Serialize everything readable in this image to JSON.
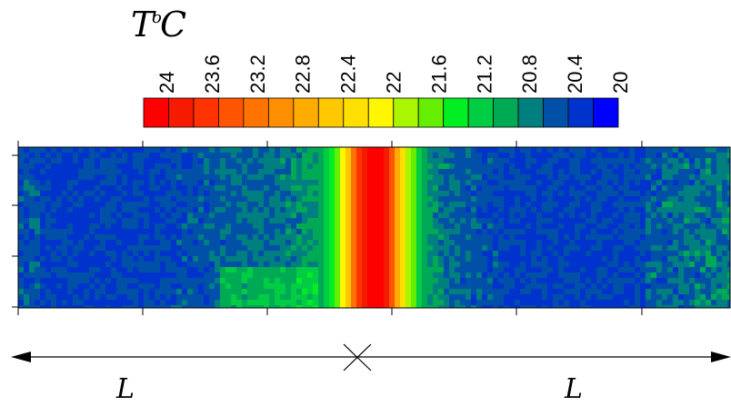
{
  "chart_data": {
    "type": "heatmap",
    "title_symbol": "T",
    "title_superscript": "o",
    "title_unit": "C",
    "colorbar": {
      "tick_labels": [
        "24",
        "23.6",
        "23.2",
        "22.8",
        "22.4",
        "22",
        "21.6",
        "21.2",
        "20.8",
        "20.4",
        "20"
      ],
      "colors": [
        "#ff0000",
        "#f51a00",
        "#ff3300",
        "#ff5500",
        "#ff7300",
        "#ff8f00",
        "#ffab00",
        "#ffc800",
        "#ffe000",
        "#fff700",
        "#aaf500",
        "#66ee00",
        "#00ee22",
        "#00cc44",
        "#00aa55",
        "#007f80",
        "#0050a8",
        "#0033cc",
        "#0000ff"
      ],
      "min": 20,
      "max": 24
    },
    "field_profile": {
      "x": [
        0.0,
        0.1,
        0.2,
        0.3,
        0.38,
        0.42,
        0.44,
        0.46,
        0.48,
        0.5,
        0.52,
        0.54,
        0.56,
        0.58,
        0.62,
        0.7,
        0.8,
        0.9,
        1.0
      ],
      "temperature": [
        20.4,
        20.4,
        20.45,
        20.6,
        20.7,
        20.9,
        21.3,
        22.2,
        23.6,
        24.0,
        23.6,
        22.2,
        21.3,
        20.8,
        20.6,
        20.4,
        20.4,
        20.45,
        20.6
      ]
    },
    "dimension": {
      "left_label": "L",
      "right_label": "L"
    }
  }
}
